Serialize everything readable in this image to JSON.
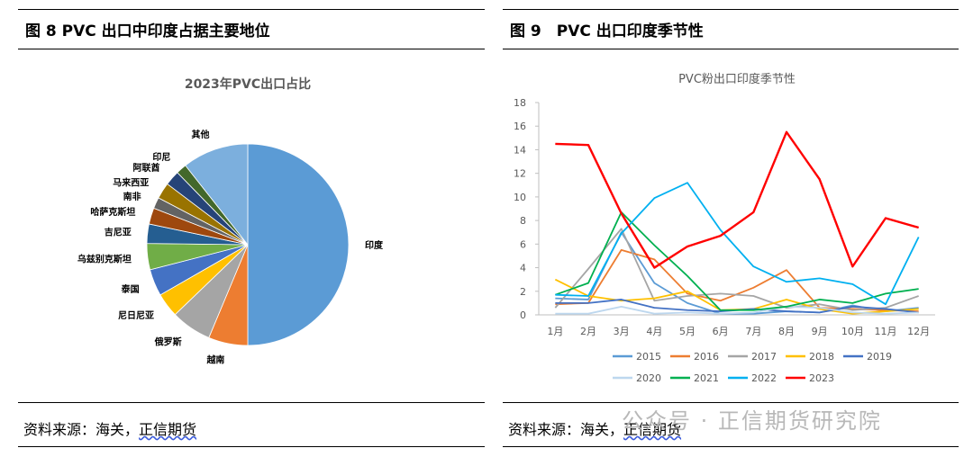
{
  "left": {
    "figure_title": "图 8 PVC 出口中印度占据主要地位",
    "source_prefix": "资料来源：海关，",
    "source_org": "正信期货"
  },
  "right": {
    "figure_title": "图 9　PVC 出口印度季节性",
    "source_prefix": "资料来源：海关，",
    "source_org": "正信期货"
  },
  "watermark": "公众号 · 正信期货研究院",
  "chart_data": [
    {
      "type": "pie",
      "title": "2023年PVC出口占比",
      "start": "top-clockwise",
      "slices": [
        {
          "label": "印度",
          "value": 50.0,
          "color": "#5b9bd5"
        },
        {
          "label": "越南",
          "value": 6.3,
          "color": "#ed7d31"
        },
        {
          "label": "俄罗斯",
          "value": 6.5,
          "color": "#a5a5a5"
        },
        {
          "label": "尼日尼亚",
          "value": 3.9,
          "color": "#ffc000"
        },
        {
          "label": "泰国",
          "value": 4.3,
          "color": "#4472c4"
        },
        {
          "label": "乌兹别克斯坦",
          "value": 4.2,
          "color": "#70ad47"
        },
        {
          "label": "吉尼亚",
          "value": 3.1,
          "color": "#255e91"
        },
        {
          "label": "哈萨克斯坦",
          "value": 2.6,
          "color": "#9e480e"
        },
        {
          "label": "南非",
          "value": 1.8,
          "color": "#636363"
        },
        {
          "label": "马来西亚",
          "value": 2.6,
          "color": "#997300"
        },
        {
          "label": "阿联酋",
          "value": 2.4,
          "color": "#264478"
        },
        {
          "label": "印尼",
          "value": 1.7,
          "color": "#43682b"
        },
        {
          "label": "其他",
          "value": 10.6,
          "color": "#7cafdd"
        }
      ]
    },
    {
      "type": "line",
      "title": "PVC粉出口印度季节性",
      "categories": [
        "1月",
        "2月",
        "3月",
        "4月",
        "5月",
        "6月",
        "7月",
        "8月",
        "9月",
        "10月",
        "11月",
        "12月"
      ],
      "ylim": [
        0,
        18
      ],
      "yticks": [
        0,
        2,
        4,
        6,
        8,
        10,
        12,
        14,
        16,
        18
      ],
      "legend_position": "bottom",
      "series": [
        {
          "name": "2015",
          "color": "#5b9bd5",
          "values": [
            1.4,
            1.3,
            7.0,
            2.7,
            1.0,
            0.1,
            0.1,
            0.3,
            0.2,
            0.8,
            0.3,
            0.6
          ]
        },
        {
          "name": "2016",
          "color": "#ed7d31",
          "values": [
            0.9,
            1.0,
            5.5,
            4.7,
            1.8,
            1.2,
            2.3,
            3.8,
            0.6,
            0.5,
            0.4,
            0.3
          ]
        },
        {
          "name": "2017",
          "color": "#a5a5a5",
          "values": [
            0.6,
            3.9,
            7.3,
            1.2,
            1.6,
            1.8,
            1.6,
            0.6,
            0.9,
            0.4,
            0.6,
            1.6
          ]
        },
        {
          "name": "2018",
          "color": "#ffc000",
          "values": [
            3.0,
            1.6,
            1.2,
            1.4,
            2.0,
            0.4,
            0.5,
            1.3,
            0.5,
            0.1,
            0.3,
            0.5
          ]
        },
        {
          "name": "2019",
          "color": "#4472c4",
          "values": [
            1.0,
            1.0,
            1.3,
            0.6,
            0.4,
            0.3,
            0.5,
            0.3,
            0.2,
            0.7,
            0.5,
            0.2
          ]
        },
        {
          "name": "2020",
          "color": "#bdd7ee",
          "values": [
            0.1,
            0.1,
            0.7,
            0.1,
            0.2,
            0.1,
            0.2,
            0.7,
            0.6,
            0.2,
            0.1,
            0.2
          ]
        },
        {
          "name": "2021",
          "color": "#00b050",
          "values": [
            1.7,
            2.7,
            8.7,
            5.9,
            3.3,
            0.4,
            0.4,
            0.7,
            1.3,
            1.0,
            1.8,
            2.2
          ]
        },
        {
          "name": "2022",
          "color": "#00b0f0",
          "values": [
            1.7,
            1.6,
            6.9,
            9.9,
            11.2,
            7.2,
            4.1,
            2.8,
            3.1,
            2.6,
            0.9,
            6.6
          ]
        },
        {
          "name": "2023",
          "color": "#ff0000",
          "values": [
            14.5,
            14.4,
            8.6,
            4.0,
            5.8,
            6.7,
            8.7,
            15.5,
            11.5,
            4.1,
            8.2,
            7.4
          ]
        }
      ]
    }
  ]
}
